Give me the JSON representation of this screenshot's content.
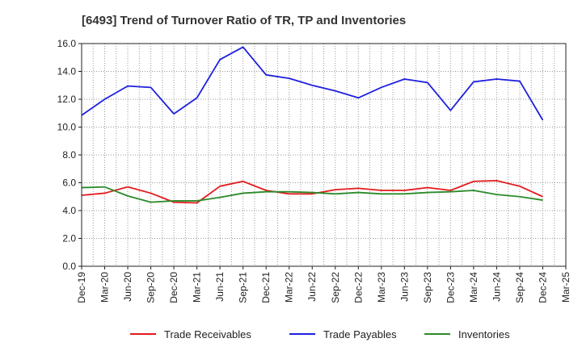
{
  "chart_data": {
    "type": "line",
    "title": "[6493]  Trend of Turnover Ratio of TR, TP and Inventories",
    "xlabel": "",
    "ylabel": "",
    "ylim": [
      0,
      16
    ],
    "yticks": [
      "0.0",
      "2.0",
      "4.0",
      "6.0",
      "8.0",
      "10.0",
      "12.0",
      "14.0",
      "16.0"
    ],
    "x_tick_labels": [
      "Dec-19",
      "Mar-20",
      "Jun-20",
      "Sep-20",
      "Dec-20",
      "Mar-21",
      "Jun-21",
      "Sep-21",
      "Dec-21",
      "Mar-22",
      "Jun-22",
      "Sep-22",
      "Dec-22",
      "Mar-23",
      "Jun-23",
      "Sep-23",
      "Dec-23",
      "Mar-24",
      "Jun-24",
      "Sep-24",
      "Dec-24",
      "Mar-25"
    ],
    "categories": [
      "Dec-19",
      "Mar-20",
      "Jun-20",
      "Sep-20",
      "Dec-20",
      "Mar-21",
      "Jun-21",
      "Sep-21",
      "Dec-21",
      "Mar-22",
      "Jun-22",
      "Sep-22",
      "Dec-22",
      "Mar-23",
      "Jun-23",
      "Sep-23",
      "Dec-23",
      "Mar-24",
      "Jun-24",
      "Sep-24",
      "Dec-24"
    ],
    "grid": true,
    "legend_position": "bottom",
    "series": [
      {
        "name": "Trade Receivables",
        "color": "#e31a1c",
        "values": [
          5.1,
          5.25,
          5.7,
          5.25,
          4.6,
          4.55,
          5.75,
          6.1,
          5.45,
          5.2,
          5.2,
          5.5,
          5.6,
          5.45,
          5.45,
          5.65,
          5.45,
          6.1,
          6.15,
          5.75,
          5.0
        ]
      },
      {
        "name": "Trade Payables",
        "color": "#1f1fe0",
        "values": [
          10.85,
          12.0,
          12.95,
          12.85,
          10.95,
          12.1,
          14.85,
          15.75,
          13.75,
          13.5,
          13.0,
          12.6,
          12.1,
          12.85,
          13.45,
          13.2,
          11.2,
          13.25,
          13.45,
          13.3,
          10.5
        ]
      },
      {
        "name": "Inventories",
        "color": "#2a8a2a",
        "values": [
          5.65,
          5.7,
          5.05,
          4.6,
          4.7,
          4.7,
          4.95,
          5.25,
          5.35,
          5.35,
          5.3,
          5.2,
          5.3,
          5.2,
          5.2,
          5.3,
          5.35,
          5.45,
          5.15,
          5.0,
          4.75
        ]
      }
    ]
  }
}
